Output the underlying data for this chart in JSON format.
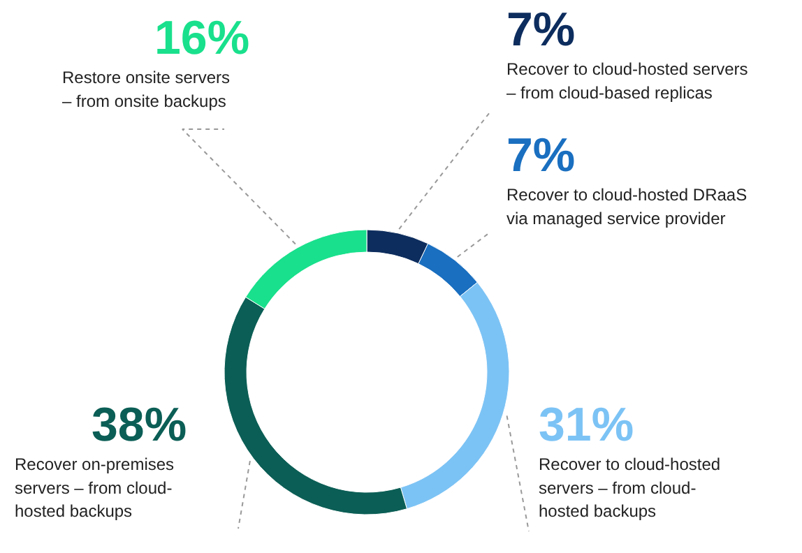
{
  "chart_data": {
    "type": "donut",
    "categories": [
      "Recover to cloud-hosted servers\n– from cloud-based replicas",
      "Recover to cloud-hosted DRaaS\nvia managed service provider",
      "Recover to cloud-hosted\nservers – from cloud-\nhosted backups",
      "Recover on-premises\nservers – from cloud-\nhosted backups",
      "Restore onsite servers\n– from onsite backups"
    ],
    "values": [
      7,
      7,
      31,
      38,
      16
    ],
    "colors": [
      "#0d2d5e",
      "#1a6fc0",
      "#7cc3f5",
      "#0b5e55",
      "#19e08c"
    ],
    "value_labels": [
      "7%",
      "7%",
      "31%",
      "38%",
      "16%"
    ]
  }
}
